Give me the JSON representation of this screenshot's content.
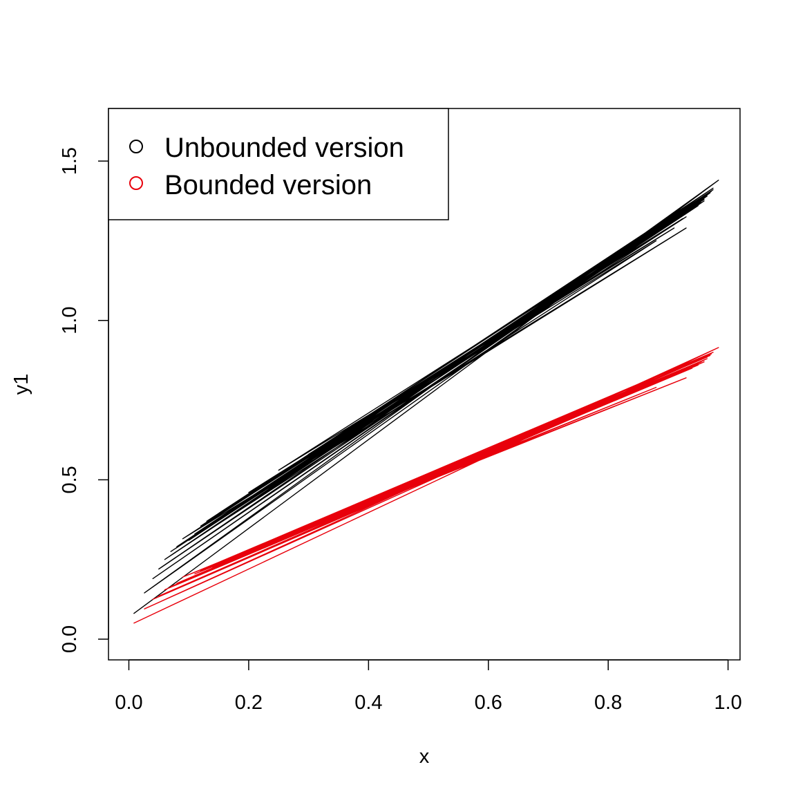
{
  "chart_data": {
    "type": "line",
    "title": "",
    "xlabel": "x",
    "ylabel": "y1",
    "xlim": [
      -0.034,
      1.02
    ],
    "ylim": [
      -0.065,
      1.665
    ],
    "x_ticks": [
      "0.0",
      "0.2",
      "0.4",
      "0.6",
      "0.8",
      "1.0"
    ],
    "x_tick_values": [
      0.0,
      0.2,
      0.4,
      0.6,
      0.8,
      1.0
    ],
    "y_ticks": [
      "0.0",
      "0.5",
      "1.0",
      "1.5"
    ],
    "y_tick_values": [
      0.0,
      0.5,
      1.0,
      1.5
    ],
    "grid": false,
    "legend_position": "top-left",
    "series": [
      {
        "name": "Unbounded version",
        "color": "#000000",
        "x": [
          0.008,
          0.984,
          0.026,
          0.972,
          0.05,
          0.96,
          0.07,
          0.94,
          0.09,
          0.93,
          0.11,
          0.965,
          0.15,
          0.95,
          0.06,
          0.975,
          0.12,
          0.955,
          0.18,
          0.88,
          0.14,
          0.965,
          0.04,
          0.97,
          0.1,
          0.945,
          0.16,
          0.93,
          0.2,
          0.91,
          0.25,
          0.96,
          0.08,
          0.975,
          0.13,
          0.95,
          0.3,
          0.925
        ],
        "y": [
          0.08,
          1.44,
          0.145,
          1.405,
          0.22,
          1.375,
          0.275,
          1.35,
          0.315,
          1.29,
          0.33,
          1.395,
          0.395,
          1.36,
          0.25,
          1.415,
          0.355,
          1.37,
          0.43,
          1.25,
          0.35,
          1.39,
          0.19,
          1.4,
          0.31,
          1.355,
          0.385,
          1.325,
          0.46,
          1.29,
          0.53,
          1.38,
          0.29,
          1.41,
          0.37,
          1.36,
          0.58,
          1.32
        ]
      },
      {
        "name": "Bounded version",
        "color": "#e8000b",
        "x": [
          0.008,
          0.984,
          0.026,
          0.972,
          0.05,
          0.96,
          0.07,
          0.94,
          0.09,
          0.93,
          0.11,
          0.965,
          0.15,
          0.95,
          0.06,
          0.975,
          0.12,
          0.955,
          0.18,
          0.88,
          0.14,
          0.965,
          0.04,
          0.97,
          0.1,
          0.945,
          0.16,
          0.93,
          0.2,
          0.91,
          0.25,
          0.96,
          0.08,
          0.975,
          0.13,
          0.95,
          0.3,
          0.925
        ],
        "y": [
          0.05,
          0.915,
          0.095,
          0.895,
          0.135,
          0.87,
          0.165,
          0.85,
          0.195,
          0.82,
          0.205,
          0.885,
          0.24,
          0.86,
          0.155,
          0.9,
          0.215,
          0.87,
          0.26,
          0.79,
          0.225,
          0.88,
          0.125,
          0.89,
          0.19,
          0.86,
          0.235,
          0.845,
          0.275,
          0.83,
          0.32,
          0.875,
          0.175,
          0.9,
          0.225,
          0.865,
          0.35,
          0.84
        ]
      }
    ]
  },
  "legend": {
    "items": [
      {
        "label": "Unbounded version",
        "color": "#000000"
      },
      {
        "label": "Bounded version",
        "color": "#e8000b"
      }
    ]
  }
}
